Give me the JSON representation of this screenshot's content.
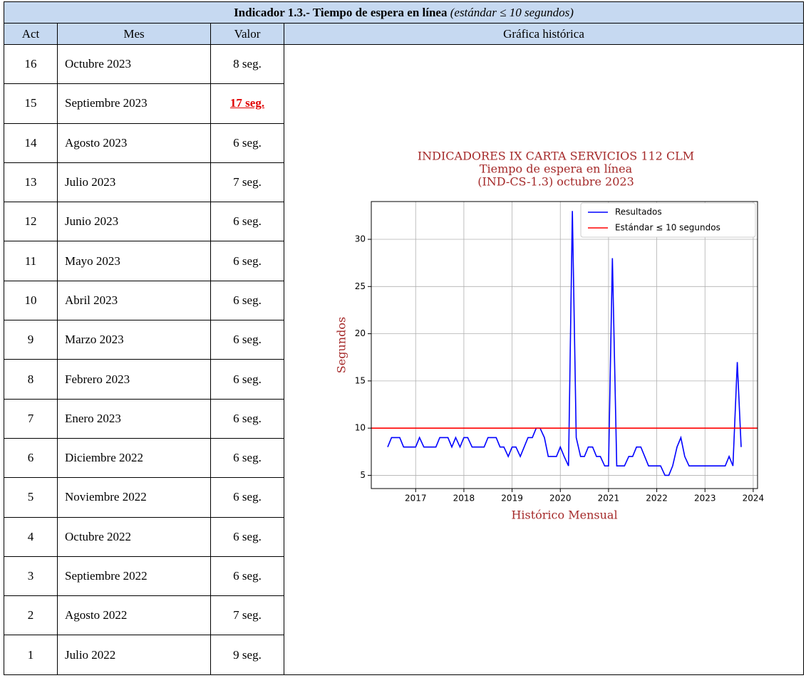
{
  "header": {
    "title": "Indicador 1.3.- Tiempo de espera en línea",
    "subtitle": "(estándar ≤ 10 segundos)"
  },
  "table": {
    "columns": [
      "Act",
      "Mes",
      "Valor",
      "Gráfica histórica"
    ],
    "rows": [
      {
        "act": 16,
        "mes": "Octubre 2023",
        "valor": "8 seg."
      },
      {
        "act": 15,
        "mes": "Septiembre 2023",
        "valor": "17 seg.",
        "alert": true
      },
      {
        "act": 14,
        "mes": "Agosto 2023",
        "valor": "6 seg."
      },
      {
        "act": 13,
        "mes": "Julio 2023",
        "valor": "7 seg."
      },
      {
        "act": 12,
        "mes": "Junio 2023",
        "valor": "6 seg."
      },
      {
        "act": 11,
        "mes": "Mayo 2023",
        "valor": "6 seg."
      },
      {
        "act": 10,
        "mes": "Abril 2023",
        "valor": "6 seg."
      },
      {
        "act": 9,
        "mes": "Marzo 2023",
        "valor": "6 seg."
      },
      {
        "act": 8,
        "mes": "Febrero 2023",
        "valor": "6 seg."
      },
      {
        "act": 7,
        "mes": "Enero 2023",
        "valor": "6 seg."
      },
      {
        "act": 6,
        "mes": "Diciembre 2022",
        "valor": "6 seg."
      },
      {
        "act": 5,
        "mes": "Noviembre 2022",
        "valor": "6 seg."
      },
      {
        "act": 4,
        "mes": "Octubre 2022",
        "valor": "6 seg."
      },
      {
        "act": 3,
        "mes": "Septiembre 2022",
        "valor": "6 seg."
      },
      {
        "act": 2,
        "mes": "Agosto 2022",
        "valor": "7 seg."
      },
      {
        "act": 1,
        "mes": "Julio 2022",
        "valor": "9 seg."
      }
    ]
  },
  "chart_data": {
    "type": "line",
    "title": [
      "INDICADORES IX CARTA SERVICIOS 112 CLM",
      "Tiempo de espera en línea",
      "(IND-CS-1.3) octubre 2023"
    ],
    "xlabel": "Histórico Mensual",
    "ylabel": "Segundos",
    "xlim": [
      2016.08,
      2024.09
    ],
    "ylim": [
      3.6,
      34.0
    ],
    "xticks": [
      2017,
      2018,
      2019,
      2020,
      2021,
      2022,
      2023,
      2024
    ],
    "yticks": [
      5,
      10,
      15,
      20,
      25,
      30
    ],
    "grid": true,
    "legend": "upper right",
    "x": [
      2016.42,
      2016.5,
      2016.58,
      2016.67,
      2016.75,
      2016.83,
      2016.92,
      2017.0,
      2017.08,
      2017.17,
      2017.25,
      2017.33,
      2017.42,
      2017.5,
      2017.58,
      2017.67,
      2017.75,
      2017.83,
      2017.92,
      2018.0,
      2018.08,
      2018.17,
      2018.25,
      2018.33,
      2018.42,
      2018.5,
      2018.58,
      2018.67,
      2018.75,
      2018.83,
      2018.92,
      2019.0,
      2019.08,
      2019.17,
      2019.25,
      2019.33,
      2019.42,
      2019.5,
      2019.58,
      2019.67,
      2019.75,
      2019.83,
      2019.92,
      2020.0,
      2020.08,
      2020.17,
      2020.25,
      2020.33,
      2020.42,
      2020.5,
      2020.58,
      2020.67,
      2020.75,
      2020.83,
      2020.92,
      2021.0,
      2021.08,
      2021.17,
      2021.25,
      2021.33,
      2021.42,
      2021.5,
      2021.58,
      2021.67,
      2021.75,
      2021.83,
      2021.92,
      2022.0,
      2022.08,
      2022.17,
      2022.25,
      2022.33,
      2022.42,
      2022.5,
      2022.58,
      2022.67,
      2022.75,
      2022.83,
      2022.92,
      2023.0,
      2023.08,
      2023.17,
      2023.25,
      2023.33,
      2023.42,
      2023.5,
      2023.58,
      2023.67,
      2023.75
    ],
    "series": [
      {
        "name": "Resultados",
        "color": "#0000ff",
        "values": [
          8,
          9,
          9,
          9,
          8,
          8,
          8,
          8,
          9,
          8,
          8,
          8,
          8,
          9,
          9,
          9,
          8,
          9,
          8,
          9,
          9,
          8,
          8,
          8,
          8,
          9,
          9,
          9,
          8,
          8,
          7,
          8,
          8,
          7,
          8,
          9,
          9,
          10,
          10,
          9,
          7,
          7,
          7,
          8,
          7,
          6,
          33,
          9,
          7,
          7,
          8,
          8,
          7,
          7,
          6,
          6,
          28,
          6,
          6,
          6,
          7,
          7,
          8,
          8,
          7,
          6,
          6,
          6,
          6,
          5,
          5,
          6,
          8,
          9,
          7,
          6,
          6,
          6,
          6,
          6,
          6,
          6,
          6,
          6,
          6,
          7,
          6,
          17,
          8
        ]
      },
      {
        "name": "Estándar ≤ 10 segundos",
        "color": "#ff0000",
        "value": 10
      }
    ]
  }
}
